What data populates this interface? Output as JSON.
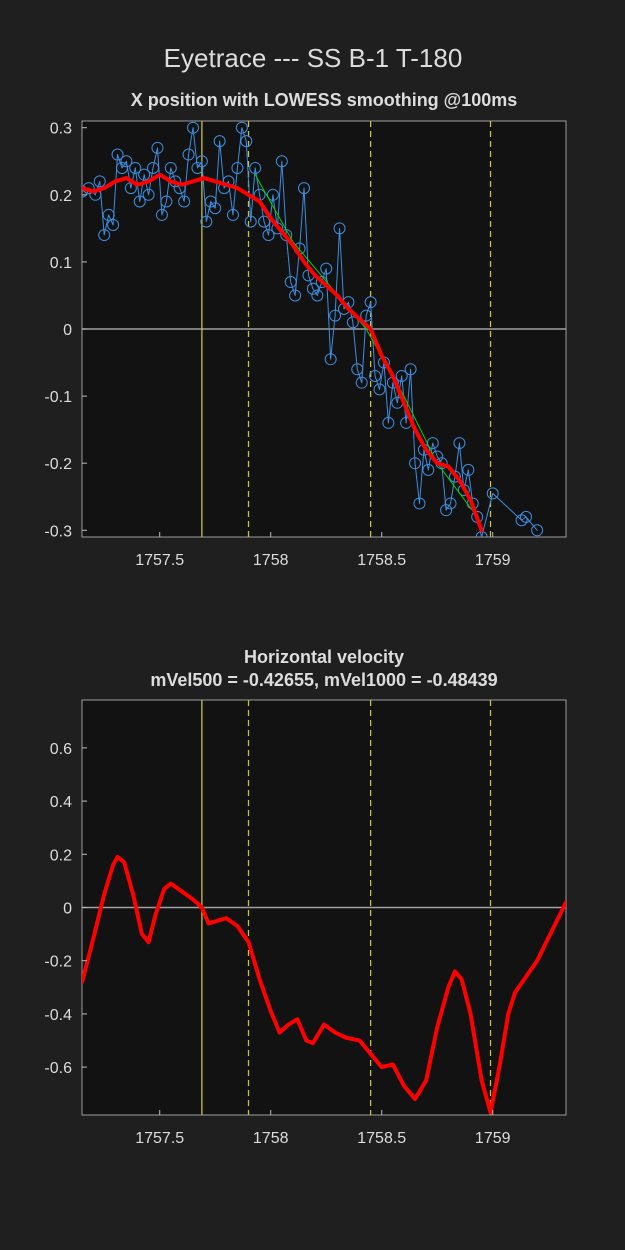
{
  "title": "Eyetrace --- SS B-1 T-180",
  "chart_data": [
    {
      "type": "line",
      "title": "X position with LOWESS smoothing @100ms",
      "xlim": [
        1757.15,
        1759.33
      ],
      "ylim": [
        -0.31,
        0.31
      ],
      "xticks": [
        1757.5,
        1758,
        1758.5,
        1759
      ],
      "yticks": [
        -0.3,
        -0.2,
        -0.1,
        0,
        0.1,
        0.2,
        0.3
      ],
      "hline": 0,
      "hline_color": "#a0a0a0",
      "vlines": [
        {
          "x": 1757.69,
          "style": "solid"
        },
        {
          "x": 1757.9,
          "style": "dashed"
        },
        {
          "x": 1758.45,
          "style": "dashed"
        },
        {
          "x": 1758.99,
          "style": "dashed"
        }
      ],
      "vline_color": "#c8c040",
      "series": [
        {
          "color": "#3d8ee0",
          "marker": "circle",
          "line_width": 1,
          "x": [
            1757.15,
            1757.18,
            1757.21,
            1757.23,
            1757.25,
            1757.27,
            1757.29,
            1757.31,
            1757.33,
            1757.35,
            1757.37,
            1757.39,
            1757.41,
            1757.43,
            1757.45,
            1757.47,
            1757.49,
            1757.51,
            1757.53,
            1757.55,
            1757.57,
            1757.59,
            1757.61,
            1757.63,
            1757.65,
            1757.67,
            1757.69,
            1757.71,
            1757.73,
            1757.75,
            1757.77,
            1757.79,
            1757.81,
            1757.83,
            1757.85,
            1757.87,
            1757.89,
            1757.91,
            1757.93,
            1757.95,
            1757.97,
            1757.99,
            1758.01,
            1758.03,
            1758.05,
            1758.07,
            1758.09,
            1758.11,
            1758.13,
            1758.15,
            1758.17,
            1758.19,
            1758.21,
            1758.23,
            1758.25,
            1758.27,
            1758.29,
            1758.31,
            1758.33,
            1758.35,
            1758.37,
            1758.39,
            1758.41,
            1758.43,
            1758.45,
            1758.47,
            1758.49,
            1758.51,
            1758.53,
            1758.55,
            1758.57,
            1758.59,
            1758.61,
            1758.63,
            1758.65,
            1758.67,
            1758.69,
            1758.71,
            1758.73,
            1758.75,
            1758.77,
            1758.79,
            1758.81,
            1758.83,
            1758.85,
            1758.87,
            1758.89,
            1758.91,
            1758.93,
            1758.95,
            1759.0,
            1759.13,
            1759.15,
            1759.2
          ],
          "values": [
            0.205,
            0.21,
            0.2,
            0.22,
            0.14,
            0.17,
            0.155,
            0.26,
            0.24,
            0.25,
            0.21,
            0.24,
            0.19,
            0.23,
            0.2,
            0.24,
            0.27,
            0.17,
            0.19,
            0.24,
            0.22,
            0.21,
            0.19,
            0.26,
            0.3,
            0.24,
            0.25,
            0.16,
            0.19,
            0.18,
            0.28,
            0.21,
            0.22,
            0.17,
            0.24,
            0.3,
            0.28,
            0.16,
            0.24,
            0.2,
            0.16,
            0.14,
            0.2,
            0.15,
            0.25,
            0.14,
            0.07,
            0.05,
            0.12,
            0.21,
            0.08,
            0.06,
            0.05,
            0.07,
            0.09,
            -0.045,
            0.02,
            0.15,
            0.03,
            0.04,
            0.01,
            -0.06,
            -0.08,
            0.02,
            0.04,
            -0.07,
            -0.09,
            -0.05,
            -0.14,
            -0.08,
            -0.11,
            -0.07,
            -0.14,
            -0.06,
            -0.2,
            -0.26,
            -0.18,
            -0.21,
            -0.17,
            -0.19,
            -0.2,
            -0.27,
            -0.26,
            -0.22,
            -0.17,
            -0.24,
            -0.21,
            -0.26,
            -0.28,
            -0.31,
            -0.245,
            -0.285,
            -0.28,
            -0.3
          ]
        },
        {
          "color": "#00d000",
          "line_width": 1,
          "x": [
            1757.93,
            1758.1,
            1758.43,
            1758.6,
            1758.75,
            1758.93
          ],
          "values": [
            0.23,
            0.13,
            0.0,
            -0.1,
            -0.2,
            -0.28
          ]
        },
        {
          "color": "#ff0000",
          "line_width": 4,
          "x": [
            1757.15,
            1757.2,
            1757.25,
            1757.3,
            1757.35,
            1757.4,
            1757.45,
            1757.5,
            1757.55,
            1757.6,
            1757.65,
            1757.7,
            1757.75,
            1757.8,
            1757.85,
            1757.9,
            1757.95,
            1758.0,
            1758.05,
            1758.1,
            1758.15,
            1758.2,
            1758.25,
            1758.3,
            1758.35,
            1758.4,
            1758.45,
            1758.5,
            1758.55,
            1758.6,
            1758.65,
            1758.7,
            1758.75,
            1758.8,
            1758.85,
            1758.9,
            1758.95
          ],
          "values": [
            0.21,
            0.205,
            0.21,
            0.22,
            0.225,
            0.215,
            0.22,
            0.23,
            0.22,
            0.215,
            0.22,
            0.225,
            0.22,
            0.215,
            0.21,
            0.2,
            0.19,
            0.165,
            0.145,
            0.125,
            0.1,
            0.08,
            0.065,
            0.05,
            0.03,
            0.015,
            0.0,
            -0.04,
            -0.07,
            -0.11,
            -0.15,
            -0.18,
            -0.2,
            -0.205,
            -0.225,
            -0.255,
            -0.3
          ]
        }
      ]
    },
    {
      "type": "line",
      "title": "Horizontal velocity",
      "subtitle": "mVel500 = -0.42655, mVel1000 = -0.48439",
      "xlim": [
        1757.15,
        1759.33
      ],
      "ylim": [
        -0.78,
        0.78
      ],
      "xticks": [
        1757.5,
        1758,
        1758.5,
        1759
      ],
      "yticks": [
        -0.6,
        -0.4,
        -0.2,
        0,
        0.2,
        0.4,
        0.6
      ],
      "hline": 0,
      "hline_color": "#a0a0a0",
      "vlines": [
        {
          "x": 1757.69,
          "style": "solid"
        },
        {
          "x": 1757.9,
          "style": "dashed"
        },
        {
          "x": 1758.45,
          "style": "dashed"
        },
        {
          "x": 1758.99,
          "style": "dashed"
        }
      ],
      "vline_color": "#c8c040",
      "series": [
        {
          "color": "#ff0000",
          "line_width": 4,
          "x": [
            1757.15,
            1757.2,
            1757.25,
            1757.29,
            1757.31,
            1757.34,
            1757.38,
            1757.42,
            1757.45,
            1757.48,
            1757.52,
            1757.55,
            1757.6,
            1757.65,
            1757.69,
            1757.72,
            1757.76,
            1757.8,
            1757.85,
            1757.9,
            1757.95,
            1758.0,
            1758.04,
            1758.08,
            1758.12,
            1758.16,
            1758.19,
            1758.24,
            1758.29,
            1758.34,
            1758.4,
            1758.45,
            1758.5,
            1758.55,
            1758.6,
            1758.65,
            1758.7,
            1758.75,
            1758.8,
            1758.83,
            1758.86,
            1758.9,
            1758.95,
            1758.99,
            1759.03,
            1759.07,
            1759.1,
            1759.2,
            1759.33
          ],
          "values": [
            -0.28,
            -0.12,
            0.05,
            0.16,
            0.19,
            0.17,
            0.05,
            -0.1,
            -0.13,
            -0.03,
            0.07,
            0.09,
            0.06,
            0.03,
            0.0,
            -0.06,
            -0.05,
            -0.04,
            -0.07,
            -0.13,
            -0.27,
            -0.39,
            -0.47,
            -0.44,
            -0.42,
            -0.5,
            -0.51,
            -0.44,
            -0.47,
            -0.49,
            -0.5,
            -0.55,
            -0.6,
            -0.59,
            -0.67,
            -0.72,
            -0.65,
            -0.45,
            -0.3,
            -0.24,
            -0.27,
            -0.4,
            -0.65,
            -0.77,
            -0.6,
            -0.4,
            -0.32,
            -0.2,
            0.02
          ]
        }
      ]
    }
  ]
}
